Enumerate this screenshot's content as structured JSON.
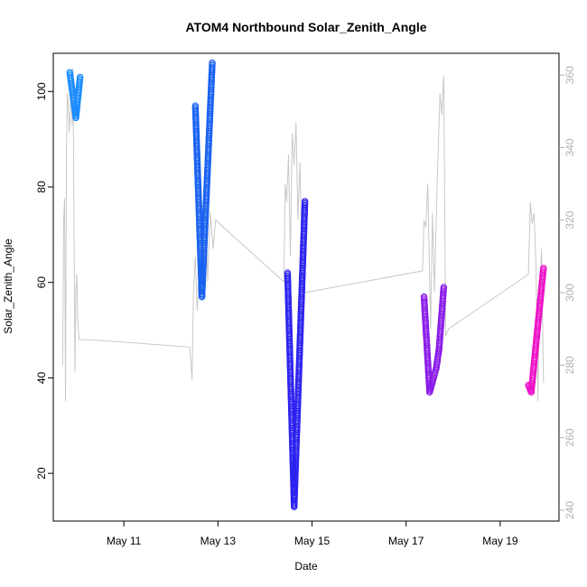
{
  "chart_data": {
    "type": "scatter",
    "title": "ATOM4 Northbound Solar_Zenith_Angle",
    "xlabel": "Date",
    "ylabel": "Solar_Zenith_Angle",
    "x_ticks": [
      {
        "value": "May 11",
        "day": 11
      },
      {
        "value": "May 13",
        "day": 13
      },
      {
        "value": "May 15",
        "day": 15
      },
      {
        "value": "May 17",
        "day": 17
      },
      {
        "value": "May 19",
        "day": 19
      }
    ],
    "xlim": [
      "2018-05-09T12:00",
      "2018-05-20T06:00"
    ],
    "ylim": [
      10,
      108
    ],
    "y_ticks": [
      20,
      40,
      60,
      80,
      100
    ],
    "secondary_axis": {
      "ticks": [
        240,
        260,
        280,
        300,
        320,
        340,
        360
      ],
      "ylim": [
        237,
        366
      ],
      "color": "#b0b0b0"
    },
    "secondary_series_color": "#c8c8c8",
    "grid": false,
    "series": [
      {
        "color": "#1a8cff",
        "segments": [
          {
            "from": [
              9.85,
              104
            ],
            "to": [
              9.98,
              94.5
            ]
          },
          {
            "from": [
              9.98,
              94.5
            ],
            "to": [
              10.07,
              103
            ]
          }
        ]
      },
      {
        "color": "#1760f0",
        "segments": [
          {
            "from": [
              12.52,
              97
            ],
            "to": [
              12.66,
              57
            ]
          },
          {
            "from": [
              12.66,
              57
            ],
            "to": [
              12.88,
              106
            ]
          }
        ]
      },
      {
        "color": "#2b20ee",
        "segments": [
          {
            "from": [
              14.48,
              62
            ],
            "to": [
              14.62,
              13
            ]
          },
          {
            "from": [
              14.62,
              13
            ],
            "to": [
              14.85,
              77
            ]
          }
        ]
      },
      {
        "color": "#8a1ae8",
        "segments": [
          {
            "from": [
              17.38,
              57
            ],
            "to": [
              17.5,
              37
            ]
          },
          {
            "from": [
              17.5,
              37
            ],
            "to": [
              17.64,
              42
            ]
          },
          {
            "from": [
              17.64,
              42
            ],
            "to": [
              17.7,
              46
            ]
          },
          {
            "from": [
              17.7,
              46
            ],
            "to": [
              17.8,
              59
            ]
          }
        ]
      },
      {
        "color": "#ee10c8",
        "segments": [
          {
            "from": [
              19.6,
              38.5
            ],
            "to": [
              19.66,
              37
            ]
          },
          {
            "from": [
              19.66,
              37
            ],
            "to": [
              19.92,
              63
            ]
          }
        ]
      }
    ],
    "secondary_series": [
      [
        9.7,
        280
      ],
      [
        9.72,
        320
      ],
      [
        9.74,
        326
      ],
      [
        9.76,
        270
      ],
      [
        9.78,
        340
      ],
      [
        9.8,
        355
      ],
      [
        9.82,
        352
      ],
      [
        9.84,
        344
      ],
      [
        9.86,
        350
      ],
      [
        9.88,
        358
      ],
      [
        9.9,
        346
      ],
      [
        9.92,
        362
      ],
      [
        9.94,
        320
      ],
      [
        9.96,
        278
      ],
      [
        9.98,
        300
      ],
      [
        10.0,
        305
      ],
      [
        10.02,
        292
      ],
      [
        10.05,
        287
      ],
      [
        10.3,
        287
      ],
      [
        12.4,
        285
      ],
      [
        12.45,
        276
      ],
      [
        12.48,
        300
      ],
      [
        12.52,
        310
      ],
      [
        12.56,
        295
      ],
      [
        12.6,
        306
      ],
      [
        12.64,
        330
      ],
      [
        12.68,
        298
      ],
      [
        12.72,
        334
      ],
      [
        12.78,
        303
      ],
      [
        12.84,
        322
      ],
      [
        12.9,
        312
      ],
      [
        12.95,
        320
      ],
      [
        14.4,
        303
      ],
      [
        14.43,
        330
      ],
      [
        14.46,
        325
      ],
      [
        14.5,
        338
      ],
      [
        14.54,
        310
      ],
      [
        14.58,
        344
      ],
      [
        14.62,
        335
      ],
      [
        14.66,
        347
      ],
      [
        14.7,
        320
      ],
      [
        14.74,
        336
      ],
      [
        14.8,
        302
      ],
      [
        14.85,
        300
      ],
      [
        17.35,
        306
      ],
      [
        17.38,
        320
      ],
      [
        17.42,
        318
      ],
      [
        17.46,
        330
      ],
      [
        17.52,
        290
      ],
      [
        17.56,
        322
      ],
      [
        17.6,
        300
      ],
      [
        17.66,
        330
      ],
      [
        17.72,
        355
      ],
      [
        17.76,
        349
      ],
      [
        17.8,
        360
      ],
      [
        17.84,
        288
      ],
      [
        17.9,
        290
      ],
      [
        19.6,
        305
      ],
      [
        19.64,
        325
      ],
      [
        19.68,
        319
      ],
      [
        19.72,
        322
      ],
      [
        19.76,
        308
      ],
      [
        19.8,
        270
      ],
      [
        19.84,
        300
      ],
      [
        19.88,
        312
      ],
      [
        19.92,
        275
      ]
    ]
  }
}
